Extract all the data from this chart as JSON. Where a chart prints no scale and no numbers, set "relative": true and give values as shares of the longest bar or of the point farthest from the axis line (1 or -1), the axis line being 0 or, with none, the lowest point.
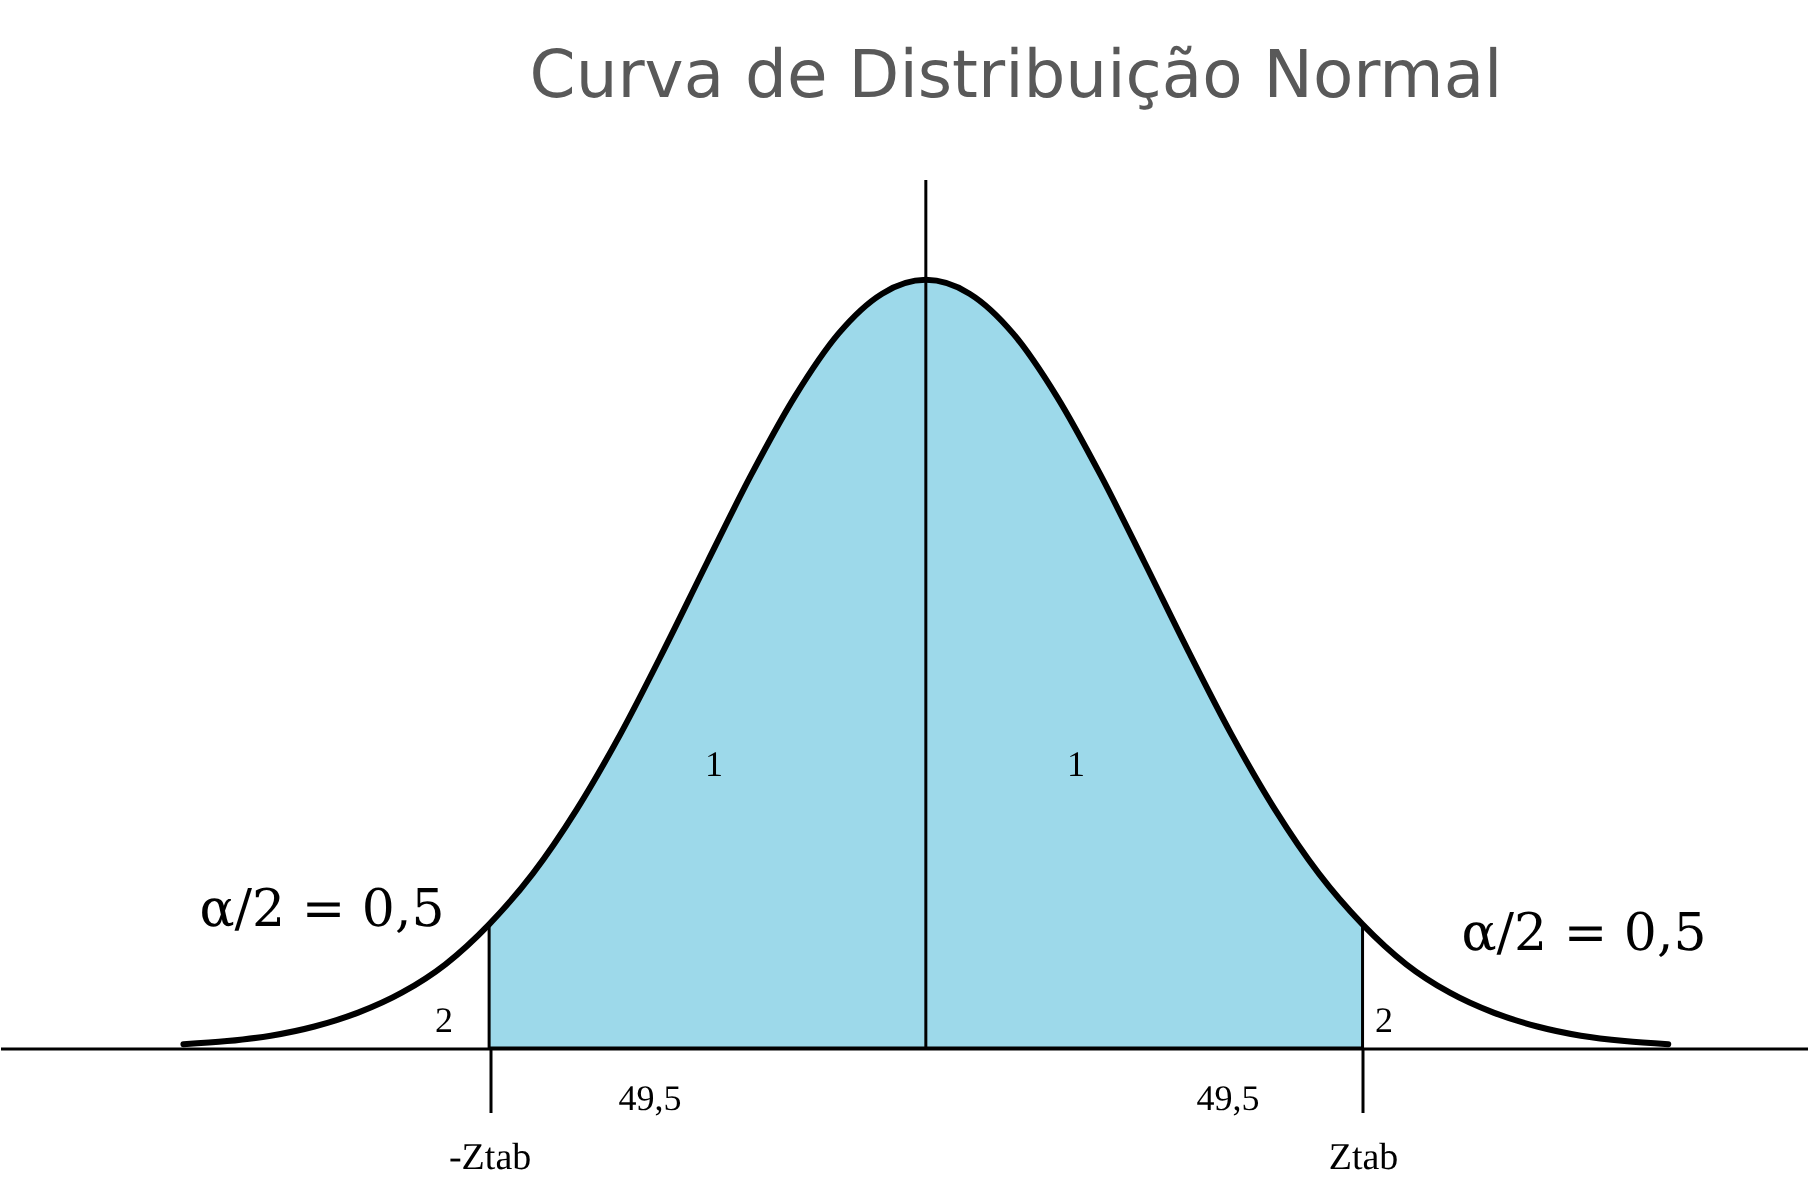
{
  "chart_data": {
    "type": "line",
    "title": "Curva de Distribuição Normal",
    "relative": true,
    "categories": [
      null,
      null,
      null,
      null,
      null,
      null,
      null,
      null,
      null,
      null,
      null,
      "-Ztab",
      null,
      null,
      null,
      null,
      null,
      null,
      null,
      null,
      null,
      null,
      null,
      null,
      null,
      null,
      null,
      null,
      null,
      null,
      null,
      "Ztab",
      null,
      null,
      null,
      null,
      null,
      null,
      null,
      null,
      null,
      null
    ],
    "series": [
      {
        "type": "area",
        "color": "#9dd9ea",
        "values": [
          null,
          null,
          null,
          null,
          null,
          null,
          null,
          null,
          null,
          null,
          null,
          0.161,
          0.227,
          0.31,
          0.408,
          0.518,
          0.633,
          0.746,
          0.848,
          0.93,
          0.982,
          1,
          0.982,
          0.93,
          0.848,
          0.746,
          0.633,
          0.518,
          0.408,
          0.31,
          0.227,
          0.161,
          null,
          null,
          null,
          null,
          null,
          null,
          null,
          null,
          null,
          null
        ]
      },
      {
        "color": "#000000",
        "values": [
          null,
          null,
          null,
          null,
          0.005,
          0.009,
          0.016,
          0.028,
          0.046,
          0.072,
          0.109,
          0.161,
          0.227,
          0.31,
          0.408,
          0.518,
          0.633,
          0.746,
          0.848,
          0.93,
          0.982,
          1,
          0.982,
          0.93,
          0.848,
          0.746,
          0.633,
          0.518,
          0.408,
          0.31,
          0.227,
          0.161,
          0.109,
          0.072,
          0.046,
          0.028,
          0.016,
          0.009,
          0.005,
          null,
          null,
          null
        ]
      }
    ],
    "annotations": [
      "α/2 = 0,5",
      "α/2 = 0,5",
      "1",
      "1",
      "2",
      "2",
      "49,5",
      "49,5"
    ],
    "line_style": "solid"
  }
}
